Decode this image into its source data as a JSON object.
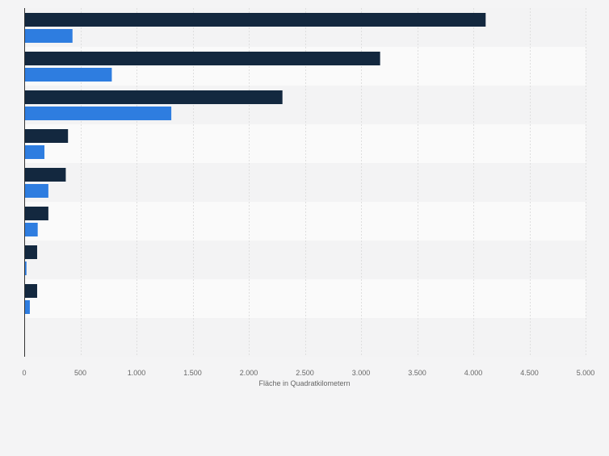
{
  "chart_data": {
    "type": "bar",
    "orientation": "horizontal",
    "categories": [
      "",
      "",
      "",
      "",
      "",
      "",
      "",
      "",
      ""
    ],
    "series": [
      {
        "color": "#13283f",
        "values": [
          4110,
          3170,
          2300,
          390,
          370,
          215,
          115,
          115,
          null
        ]
      },
      {
        "color": "#2e7de0",
        "values": [
          430,
          780,
          1310,
          180,
          215,
          120,
          20,
          50,
          null
        ]
      }
    ],
    "xlabel": "Fläche in Quadratkilometern",
    "xlim": [
      0,
      5000
    ],
    "xticks": [
      0,
      500,
      1000,
      1500,
      2000,
      2500,
      3000,
      3500,
      4000,
      4500,
      5000
    ],
    "xtick_labels": [
      "0",
      "500",
      "1.000",
      "1.500",
      "2.000",
      "2.500",
      "3.000",
      "3.500",
      "4.000",
      "4.500",
      "5.000"
    ],
    "grid": true,
    "legend": "none",
    "colors": {
      "background": "#f4f4f5",
      "band_dark": "#f3f3f4",
      "band_light": "#fafafa",
      "grid": "#dedede",
      "axis": "#333333",
      "tick_text": "#666666"
    }
  }
}
